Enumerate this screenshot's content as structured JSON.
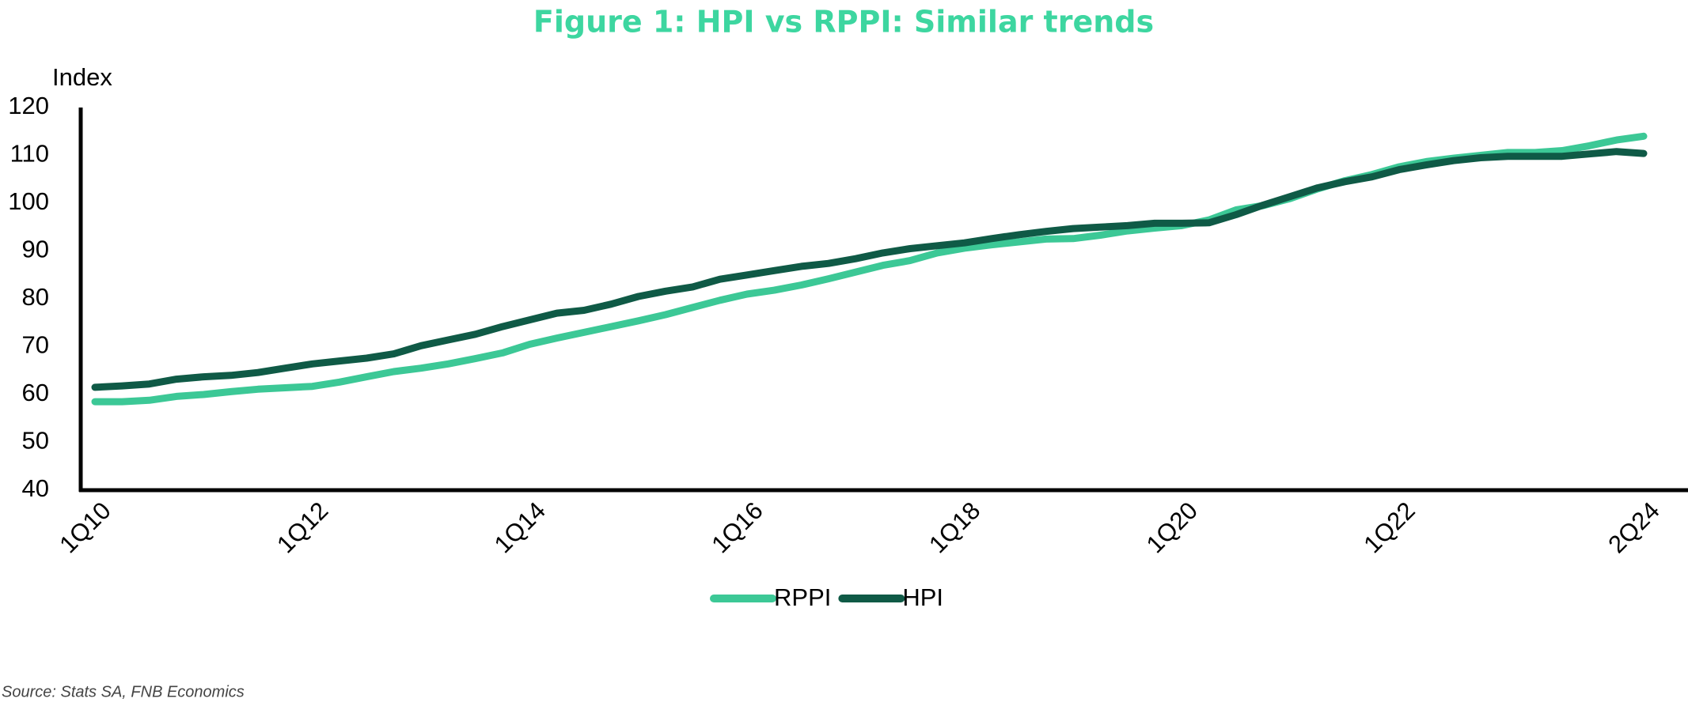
{
  "chart_data": {
    "type": "line",
    "title": "Figure 1: HPI vs RPPI: Similar trends",
    "y_label": "Index",
    "source": "Source: Stats SA, FNB Economics",
    "categories": [
      "1Q10",
      null,
      null,
      null,
      null,
      null,
      null,
      null,
      "1Q12",
      null,
      null,
      null,
      null,
      null,
      null,
      null,
      "1Q14",
      null,
      null,
      null,
      null,
      null,
      null,
      null,
      "1Q16",
      null,
      null,
      null,
      null,
      null,
      null,
      null,
      "1Q18",
      null,
      null,
      null,
      null,
      null,
      null,
      null,
      "1Q20",
      null,
      null,
      null,
      null,
      null,
      null,
      null,
      "1Q22",
      null,
      null,
      null,
      null,
      null,
      null,
      null,
      null,
      "2Q24"
    ],
    "series": [
      {
        "name": "RPPI",
        "color": "#3cc896",
        "values": [
          58.5,
          58.5,
          58.8,
          59.6,
          60,
          60.6,
          61.1,
          61.4,
          61.7,
          62.6,
          63.7,
          64.8,
          65.5,
          66.4,
          67.5,
          68.7,
          70.5,
          71.8,
          73,
          74.2,
          75.4,
          76.7,
          78.2,
          79.7,
          81,
          81.8,
          82.9,
          84.2,
          85.6,
          87,
          88,
          89.6,
          90.6,
          91.3,
          91.9,
          92.5,
          92.6,
          93.3,
          94.2,
          94.8,
          95.3,
          96.5,
          98.6,
          99.5,
          101,
          103,
          104.7,
          106,
          107.6,
          108.7,
          109.4,
          110,
          110.6,
          110.6,
          111,
          112,
          113.2,
          114
        ]
      },
      {
        "name": "HPI",
        "color": "#0f5a46",
        "values": [
          61.5,
          61.8,
          62.2,
          63.2,
          63.7,
          64,
          64.6,
          65.5,
          66.4,
          67,
          67.6,
          68.5,
          70.2,
          71.4,
          72.6,
          74.2,
          75.6,
          77,
          77.6,
          78.9,
          80.5,
          81.6,
          82.5,
          84.1,
          85,
          85.9,
          86.8,
          87.4,
          88.4,
          89.6,
          90.5,
          91.1,
          91.7,
          92.6,
          93.4,
          94.1,
          94.7,
          95,
          95.3,
          95.8,
          95.8,
          95.9,
          97.6,
          99.6,
          101.4,
          103.2,
          104.5,
          105.5,
          107,
          108,
          108.9,
          109.5,
          109.8,
          109.8,
          109.8,
          110.3,
          110.8,
          110.4
        ]
      }
    ],
    "ylim": [
      40,
      120
    ],
    "yticks": [
      40,
      50,
      60,
      70,
      80,
      90,
      100,
      110,
      120
    ],
    "grid": false
  }
}
